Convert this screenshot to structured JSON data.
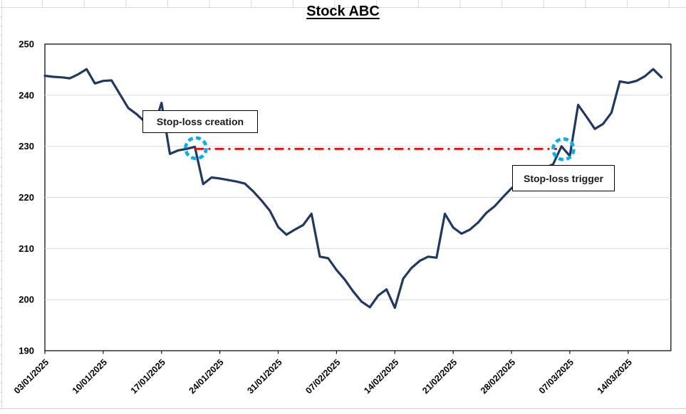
{
  "title": "Stock ABC",
  "annotations": {
    "creation_label": "Stop-loss creation",
    "trigger_label": "Stop-loss trigger"
  },
  "chart_data": {
    "type": "line",
    "title": "Stock ABC",
    "x_tick_labels": [
      "03/01/2025",
      "10/01/2025",
      "17/01/2025",
      "24/01/2025",
      "31/01/2025",
      "07/02/2025",
      "14/02/2025",
      "21/02/2025",
      "28/02/2025",
      "07/03/2025",
      "14/03/2025"
    ],
    "points_per_tick": 7,
    "y_ticks": [
      250,
      240,
      230,
      220,
      210,
      200,
      190
    ],
    "y_gridlines": [
      240,
      230,
      220,
      210,
      200
    ],
    "ylim": [
      190,
      250
    ],
    "grid": "horizontal",
    "series": [
      {
        "name": "Stock ABC",
        "color": "#1F3864",
        "values": [
          243.8,
          243.6,
          243.5,
          243.3,
          244.1,
          245.1,
          242.3,
          242.8,
          242.9,
          240.2,
          237.5,
          236.3,
          234.8,
          233.4,
          238.5,
          228.5,
          229.2,
          229.5,
          229.9,
          222.6,
          223.9,
          223.7,
          223.4,
          223.1,
          222.7,
          221.2,
          219.4,
          217.4,
          214.2,
          212.7,
          213.7,
          214.6,
          216.8,
          208.4,
          208.1,
          205.8,
          203.9,
          201.6,
          199.6,
          198.5,
          200.8,
          202.0,
          198.4,
          204.1,
          206.2,
          207.6,
          208.4,
          208.2,
          216.8,
          214.1,
          212.9,
          213.7,
          215.1,
          217.0,
          218.3,
          220.1,
          221.8,
          222.8,
          223.9,
          224.8,
          225.7,
          226.5,
          230.0,
          228.1,
          238.1,
          235.8,
          233.4,
          234.4,
          236.6,
          242.7,
          242.4,
          242.8,
          243.7,
          245.1,
          243.5
        ]
      }
    ],
    "stop_loss": {
      "level": 229.5,
      "creation_index": 18,
      "creation_value": 229.9,
      "trigger_index": 63,
      "trigger_value": 228.1,
      "line_color": "#FF0000",
      "line_style": "dash-dot",
      "highlight_color": "#00B0F0"
    }
  }
}
